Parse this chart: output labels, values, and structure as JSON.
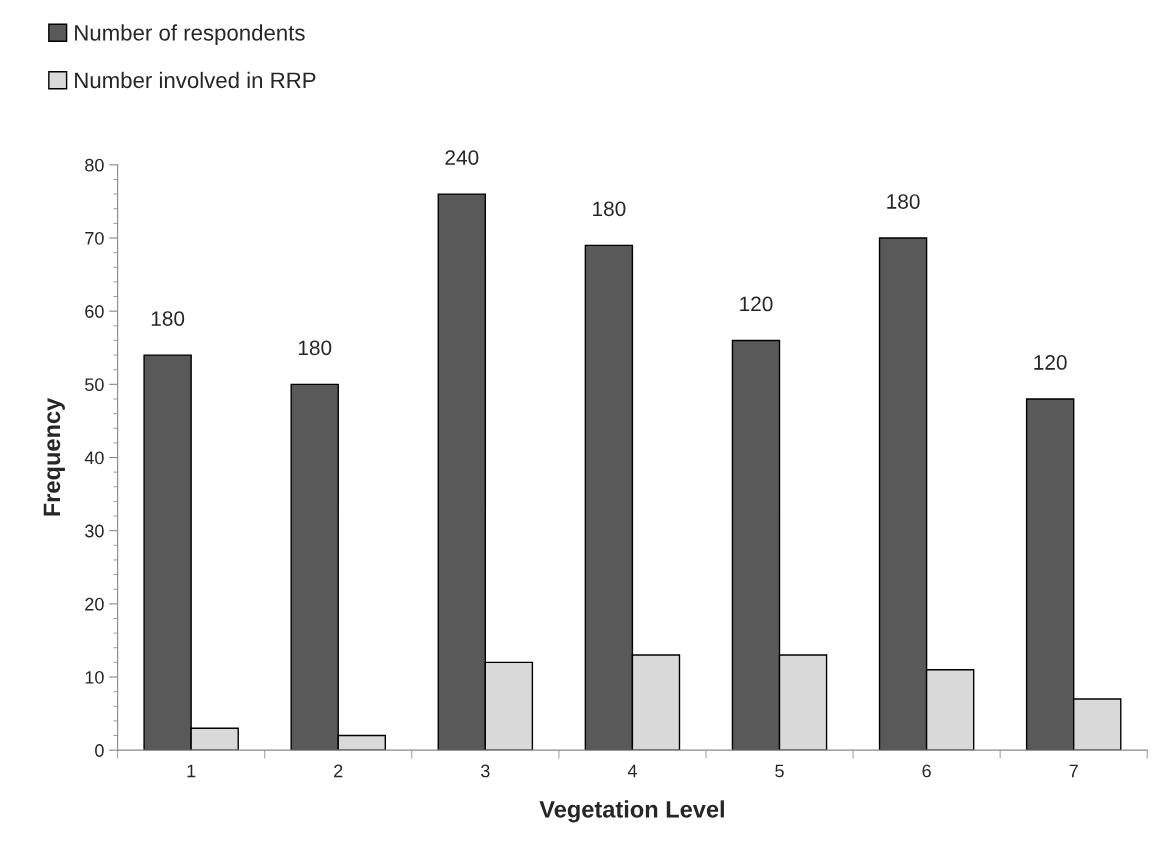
{
  "chart_data": {
    "type": "bar",
    "xlabel": "Vegetation Level",
    "ylabel": "Frequency",
    "categories": [
      "1",
      "2",
      "3",
      "4",
      "5",
      "6",
      "7"
    ],
    "series": [
      {
        "name": "Number of respondents",
        "color": "#595959",
        "values": [
          54,
          50,
          76,
          69,
          56,
          70,
          48
        ]
      },
      {
        "name": "Number involved in RRP",
        "color": "#d9d9d9",
        "values": [
          3,
          2,
          12,
          13,
          13,
          11,
          7
        ]
      }
    ],
    "ylim": [
      0,
      80
    ],
    "yticks": [
      0,
      10,
      20,
      30,
      40,
      50,
      60,
      70,
      80
    ],
    "grid": false,
    "legend": "top left",
    "annotations": [
      {
        "text": "180",
        "x": "1",
        "y": 54
      },
      {
        "text": "180",
        "x": "2",
        "y": 50
      },
      {
        "text": "240",
        "x": "3",
        "y": 76
      },
      {
        "text": "180",
        "x": "4",
        "y": 69
      },
      {
        "text": "120",
        "x": "5",
        "y": 56
      },
      {
        "text": "180",
        "x": "6",
        "y": 70
      },
      {
        "text": "120",
        "x": "7",
        "y": 48
      }
    ]
  }
}
